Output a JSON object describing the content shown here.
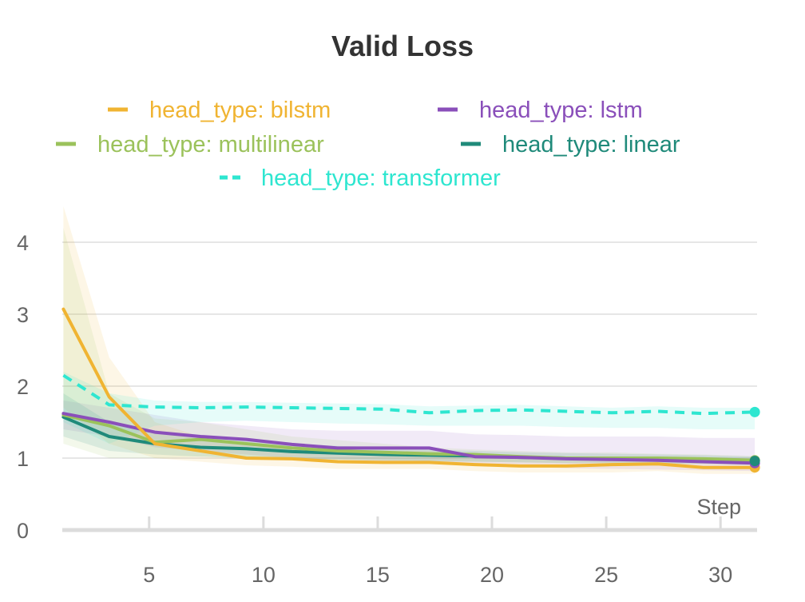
{
  "chart_data": {
    "type": "line",
    "title": "Valid Loss",
    "xlabel": "Step",
    "ylabel": "",
    "xlim": [
      1.2,
      31.6
    ],
    "ylim": [
      0,
      4.5
    ],
    "xticks": [
      5,
      10,
      15,
      20,
      25,
      30
    ],
    "yticks": [
      0,
      1,
      2,
      3,
      4
    ],
    "grid": "horizontal",
    "legend_position": "top",
    "series": [
      {
        "name": "head_type: bilstm",
        "color": "#f0b432",
        "dash": "solid",
        "x": [
          1.25,
          3.25,
          5.25,
          7.25,
          9.25,
          11.25,
          13.25,
          15.25,
          17.25,
          19.25,
          21.25,
          23.25,
          25.25,
          27.25,
          29.25,
          31.5
        ],
        "y": [
          3.07,
          1.85,
          1.2,
          1.1,
          1.0,
          0.99,
          0.95,
          0.94,
          0.94,
          0.91,
          0.89,
          0.89,
          0.91,
          0.92,
          0.87,
          0.87
        ],
        "band_upper": [
          4.5,
          2.4,
          1.5,
          1.3,
          1.2,
          1.15,
          1.1,
          1.1,
          1.1,
          1.05,
          1.05,
          1.0,
          1.0,
          1.0,
          1.0,
          1.0
        ],
        "band_lower": [
          1.7,
          1.2,
          1.0,
          0.95,
          0.9,
          0.88,
          0.85,
          0.85,
          0.85,
          0.82,
          0.8,
          0.8,
          0.8,
          0.82,
          0.78,
          0.78
        ]
      },
      {
        "name": "head_type: lstm",
        "color": "#8a4fba",
        "dash": "solid",
        "x": [
          1.25,
          3.25,
          5.25,
          7.25,
          9.25,
          11.25,
          13.25,
          15.25,
          17.25,
          19.25,
          21.25,
          23.25,
          25.25,
          27.25,
          29.25,
          31.5
        ],
        "y": [
          1.62,
          1.5,
          1.36,
          1.3,
          1.26,
          1.19,
          1.14,
          1.14,
          1.14,
          1.02,
          1.01,
          0.99,
          0.98,
          0.97,
          0.95,
          0.93
        ],
        "band_upper": [
          1.8,
          1.7,
          1.6,
          1.5,
          1.45,
          1.4,
          1.38,
          1.38,
          1.38,
          1.33,
          1.32,
          1.3,
          1.3,
          1.3,
          1.28,
          1.28
        ],
        "band_lower": [
          1.4,
          1.3,
          1.15,
          1.1,
          1.05,
          1.0,
          0.98,
          0.96,
          0.96,
          0.9,
          0.88,
          0.86,
          0.85,
          0.84,
          0.83,
          0.82
        ]
      },
      {
        "name": "head_type: multilinear",
        "color": "#9bc25b",
        "dash": "solid",
        "x": [
          1.25,
          3.25,
          5.25,
          7.25,
          9.25,
          11.25,
          13.25,
          15.25,
          17.25,
          19.25,
          21.25,
          23.25,
          25.25,
          27.25,
          29.25,
          31.5
        ],
        "y": [
          1.6,
          1.45,
          1.22,
          1.26,
          1.2,
          1.14,
          1.1,
          1.08,
          1.06,
          1.05,
          1.02,
          1.0,
          1.0,
          1.0,
          0.99,
          0.97
        ],
        "band_upper": [
          4.2,
          1.9,
          1.55,
          1.5,
          1.4,
          1.3,
          1.25,
          1.2,
          1.15,
          1.12,
          1.1,
          1.08,
          1.08,
          1.06,
          1.05,
          1.03
        ],
        "band_lower": [
          1.2,
          1.0,
          1.0,
          1.02,
          1.0,
          0.98,
          0.97,
          0.96,
          0.95,
          0.95,
          0.94,
          0.93,
          0.93,
          0.93,
          0.92,
          0.91
        ]
      },
      {
        "name": "head_type: linear",
        "color": "#1f8a7a",
        "dash": "solid",
        "x": [
          1.25,
          3.25,
          5.25,
          7.25,
          9.25,
          11.25,
          13.25,
          15.25,
          17.25,
          19.25,
          21.25,
          23.25,
          25.25,
          27.25,
          29.25,
          31.5
        ],
        "y": [
          1.57,
          1.3,
          1.2,
          1.15,
          1.13,
          1.09,
          1.07,
          1.05,
          1.04,
          1.03,
          1.01,
          1.0,
          1.0,
          0.99,
          0.98,
          0.96
        ],
        "band_upper": [
          1.9,
          1.5,
          1.35,
          1.28,
          1.25,
          1.2,
          1.17,
          1.15,
          1.12,
          1.1,
          1.08,
          1.07,
          1.06,
          1.05,
          1.04,
          1.02
        ],
        "band_lower": [
          1.3,
          1.1,
          1.05,
          1.02,
          1.0,
          0.99,
          0.98,
          0.97,
          0.96,
          0.95,
          0.94,
          0.93,
          0.93,
          0.92,
          0.92,
          0.9
        ]
      },
      {
        "name": "head_type: transformer",
        "color": "#2ee6d0",
        "dash": "dashed",
        "x": [
          1.25,
          3.25,
          5.25,
          7.25,
          9.25,
          11.25,
          13.25,
          15.25,
          17.25,
          19.25,
          21.25,
          23.25,
          25.25,
          27.25,
          29.25,
          31.5
        ],
        "y": [
          2.15,
          1.74,
          1.71,
          1.7,
          1.71,
          1.7,
          1.69,
          1.68,
          1.63,
          1.66,
          1.67,
          1.65,
          1.63,
          1.65,
          1.62,
          1.64
        ],
        "band_upper": [
          2.2,
          1.9,
          1.8,
          1.78,
          1.78,
          1.77,
          1.76,
          1.75,
          1.72,
          1.73,
          1.74,
          1.72,
          1.7,
          1.72,
          1.7,
          1.7
        ],
        "band_lower": [
          1.5,
          1.2,
          1.45,
          1.5,
          1.52,
          1.5,
          1.48,
          1.47,
          1.45,
          1.45,
          1.45,
          1.43,
          1.42,
          1.42,
          1.4,
          1.4
        ]
      }
    ]
  }
}
